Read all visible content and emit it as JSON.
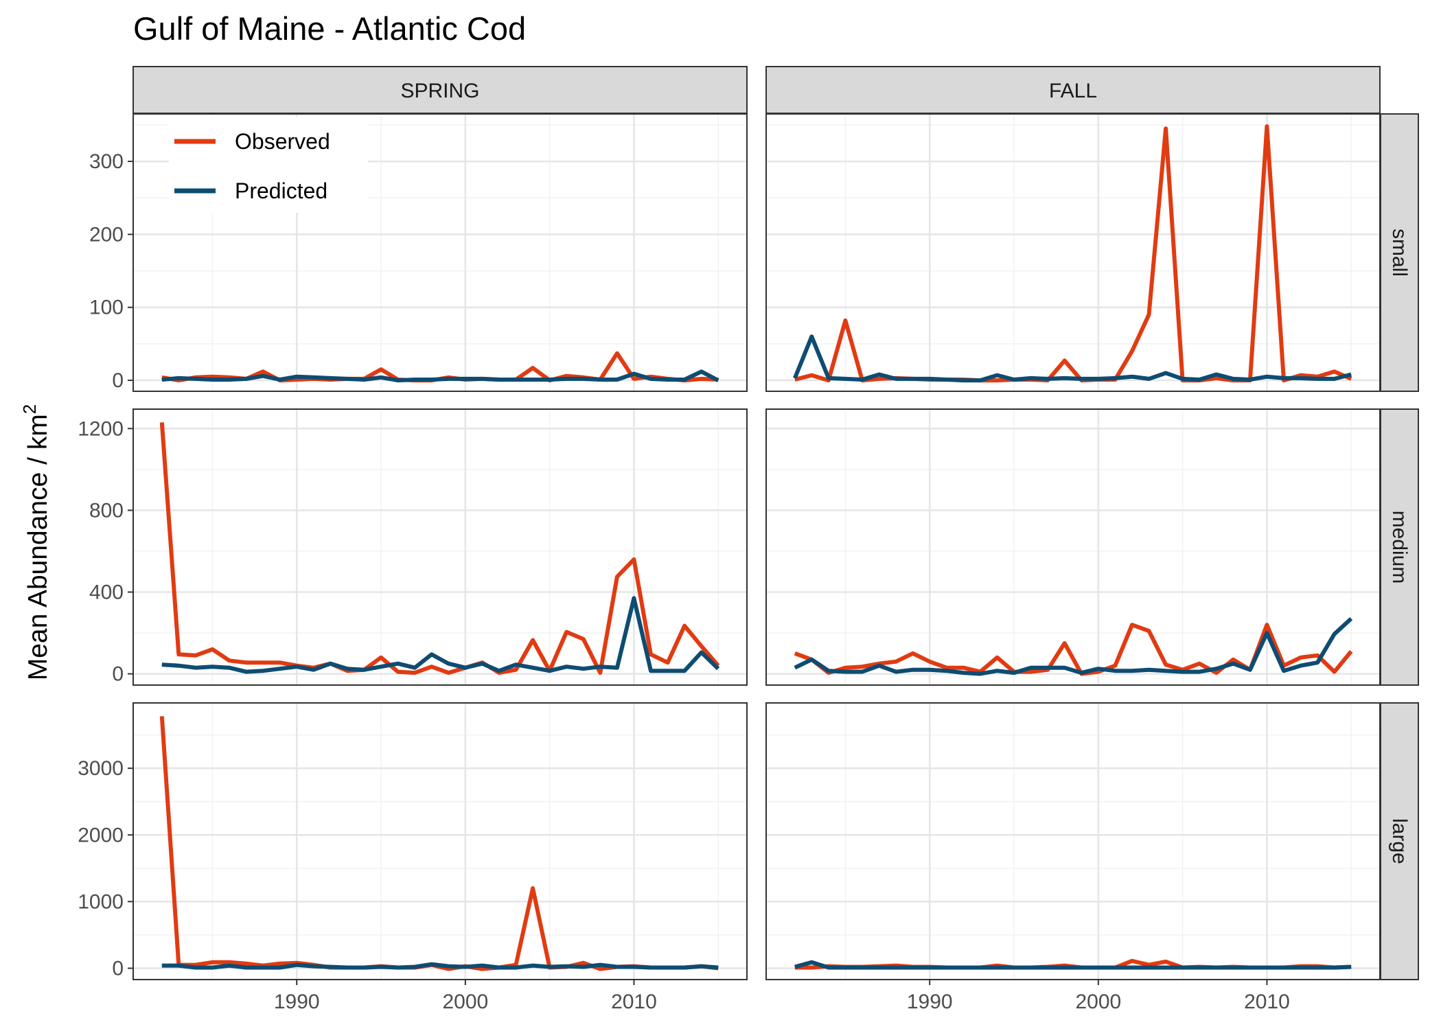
{
  "chart_data": {
    "type": "line",
    "title": "Gulf of Maine - Atlantic Cod",
    "ylabel": "Mean Abundance / km",
    "ylabel_superscript": "2",
    "xlabel": "",
    "x": [
      1982,
      1983,
      1984,
      1985,
      1986,
      1987,
      1988,
      1989,
      1990,
      1991,
      1992,
      1993,
      1994,
      1995,
      1996,
      1997,
      1998,
      1999,
      2000,
      2001,
      2002,
      2003,
      2004,
      2005,
      2006,
      2007,
      2008,
      2009,
      2010,
      2011,
      2012,
      2013,
      2014,
      2015
    ],
    "x_ticks": [
      1990,
      2000,
      2010
    ],
    "xlim": [
      1980.3,
      2016.7
    ],
    "columns": [
      "SPRING",
      "FALL"
    ],
    "rows": [
      "small",
      "medium",
      "large"
    ],
    "legend": {
      "position": "top-left",
      "entries": [
        "Observed",
        "Predicted"
      ]
    },
    "colors": {
      "Observed": "#e13b12",
      "Predicted": "#0e4c72"
    },
    "grid": true,
    "panels": [
      {
        "column": "SPRING",
        "row": "small",
        "ylim": [
          -15,
          365
        ],
        "yticks": [
          0,
          100,
          200,
          300
        ],
        "series": [
          {
            "name": "Observed",
            "values": [
              4,
              0,
              4,
              5,
              4,
              2,
              12,
              0,
              1,
              2,
              1,
              2,
              2,
              15,
              1,
              0,
              0,
              4,
              1,
              2,
              1,
              1,
              17,
              0,
              6,
              4,
              1,
              37,
              2,
              5,
              2,
              0,
              2,
              1
            ]
          },
          {
            "name": "Predicted",
            "values": [
              1,
              3,
              2,
              1,
              1,
              2,
              6,
              1,
              5,
              4,
              3,
              2,
              1,
              4,
              0,
              1,
              1,
              2,
              2,
              2,
              1,
              1,
              1,
              1,
              2,
              2,
              1,
              1,
              9,
              2,
              1,
              1,
              12,
              0
            ]
          }
        ]
      },
      {
        "column": "FALL",
        "row": "small",
        "ylim": [
          -15,
          365
        ],
        "yticks": [
          0,
          100,
          200,
          300
        ],
        "series": [
          {
            "name": "Observed",
            "values": [
              1,
              7,
              0,
              82,
              0,
              2,
              3,
              2,
              1,
              1,
              1,
              0,
              0,
              1,
              1,
              0,
              27,
              0,
              1,
              1,
              40,
              90,
              345,
              0,
              0,
              3,
              0,
              0,
              348,
              0,
              7,
              5,
              12,
              2
            ]
          },
          {
            "name": "Predicted",
            "values": [
              3,
              60,
              3,
              2,
              1,
              8,
              2,
              2,
              2,
              1,
              0,
              0,
              7,
              1,
              3,
              2,
              3,
              2,
              2,
              3,
              5,
              2,
              10,
              2,
              1,
              8,
              2,
              1,
              5,
              3,
              3,
              2,
              2,
              8
            ]
          }
        ]
      },
      {
        "column": "SPRING",
        "row": "medium",
        "ylim": [
          -55,
          1295
        ],
        "yticks": [
          0,
          400,
          800,
          1200
        ],
        "series": [
          {
            "name": "Observed",
            "values": [
              1230,
              95,
              90,
              120,
              65,
              55,
              55,
              55,
              40,
              30,
              50,
              15,
              20,
              80,
              10,
              5,
              35,
              5,
              30,
              55,
              5,
              20,
              165,
              15,
              205,
              170,
              5,
              475,
              560,
              95,
              55,
              235,
              135,
              40
            ]
          },
          {
            "name": "Predicted",
            "values": [
              45,
              40,
              30,
              35,
              30,
              10,
              15,
              25,
              35,
              20,
              50,
              25,
              20,
              35,
              50,
              30,
              95,
              50,
              30,
              50,
              15,
              45,
              30,
              15,
              35,
              25,
              35,
              30,
              370,
              15,
              15,
              15,
              105,
              25
            ]
          }
        ]
      },
      {
        "column": "FALL",
        "row": "medium",
        "ylim": [
          -55,
          1295
        ],
        "yticks": [
          0,
          400,
          800,
          1200
        ],
        "series": [
          {
            "name": "Observed",
            "values": [
              100,
              70,
              5,
              30,
              35,
              50,
              60,
              100,
              60,
              30,
              30,
              10,
              80,
              10,
              10,
              20,
              150,
              0,
              10,
              40,
              240,
              210,
              45,
              20,
              50,
              5,
              70,
              20,
              240,
              40,
              80,
              90,
              10,
              110
            ]
          },
          {
            "name": "Predicted",
            "values": [
              30,
              70,
              15,
              10,
              10,
              40,
              10,
              20,
              20,
              15,
              5,
              0,
              15,
              5,
              30,
              30,
              30,
              5,
              25,
              15,
              15,
              20,
              15,
              10,
              10,
              25,
              50,
              20,
              200,
              15,
              40,
              55,
              195,
              270
            ]
          }
        ]
      },
      {
        "column": "SPRING",
        "row": "large",
        "ylim": [
          -170,
          3980
        ],
        "yticks": [
          0,
          1000,
          2000,
          3000
        ],
        "series": [
          {
            "name": "Observed",
            "values": [
              3780,
              50,
              50,
              90,
              90,
              70,
              40,
              70,
              80,
              50,
              10,
              10,
              10,
              30,
              10,
              10,
              50,
              -10,
              30,
              -10,
              10,
              50,
              1200,
              10,
              20,
              80,
              -10,
              20,
              30,
              10,
              10,
              10,
              30,
              0
            ]
          },
          {
            "name": "Predicted",
            "values": [
              40,
              40,
              10,
              10,
              40,
              10,
              10,
              10,
              50,
              30,
              20,
              10,
              10,
              20,
              10,
              20,
              60,
              30,
              20,
              40,
              10,
              10,
              40,
              20,
              30,
              20,
              50,
              20,
              20,
              10,
              10,
              10,
              30,
              10
            ]
          }
        ]
      },
      {
        "column": "FALL",
        "row": "large",
        "ylim": [
          -170,
          3980
        ],
        "yticks": [
          0,
          1000,
          2000,
          3000
        ],
        "series": [
          {
            "name": "Observed",
            "values": [
              10,
              10,
              30,
              20,
              20,
              30,
              40,
              20,
              20,
              10,
              10,
              10,
              40,
              10,
              10,
              20,
              40,
              10,
              10,
              10,
              110,
              50,
              100,
              10,
              20,
              10,
              20,
              10,
              10,
              10,
              30,
              30,
              10,
              20
            ]
          },
          {
            "name": "Predicted",
            "values": [
              20,
              90,
              10,
              10,
              10,
              10,
              10,
              10,
              10,
              10,
              10,
              10,
              10,
              10,
              10,
              10,
              10,
              10,
              10,
              10,
              10,
              10,
              10,
              10,
              10,
              10,
              10,
              10,
              10,
              10,
              10,
              10,
              10,
              20
            ]
          }
        ]
      }
    ]
  }
}
